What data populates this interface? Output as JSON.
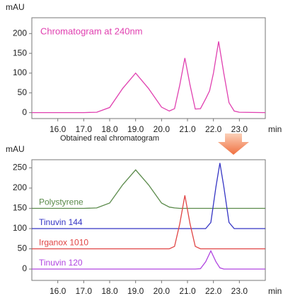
{
  "chart_data": [
    {
      "type": "line",
      "title": "Chromatogram at 240nm",
      "y_label": "mAU",
      "x_label": "min",
      "x": [
        15.0,
        16.0,
        17.0,
        17.5,
        18.0,
        18.5,
        19.0,
        19.5,
        20.0,
        20.3,
        20.5,
        20.7,
        20.9,
        21.1,
        21.3,
        21.5,
        21.7,
        21.85,
        22.0,
        22.2,
        22.4,
        22.6,
        22.8,
        23.0,
        24.0
      ],
      "series": [
        {
          "color": "#e040b0",
          "values": [
            0,
            0,
            0,
            1,
            13,
            61,
            100,
            61,
            14,
            4,
            10,
            69,
            138,
            69,
            9,
            10,
            35,
            55,
            100,
            180,
            100,
            25,
            4,
            1,
            0
          ]
        }
      ],
      "xlim": [
        15.0,
        24.0
      ],
      "xticks": [
        {
          "value": 16,
          "label": "16.0"
        },
        {
          "value": 17,
          "label": "17.0"
        },
        {
          "value": 18,
          "label": "18.0"
        },
        {
          "value": 19,
          "label": "19.0"
        },
        {
          "value": 20,
          "label": "20.0"
        },
        {
          "value": 21,
          "label": "21.0"
        },
        {
          "value": 22,
          "label": "22.0"
        },
        {
          "value": 23,
          "label": "23.0"
        }
      ],
      "ylim": [
        -15,
        240
      ],
      "yticks": [
        0,
        50,
        100,
        150,
        200
      ]
    },
    {
      "type": "line",
      "title": "Obtained real chromatogram",
      "y_label": "mAU",
      "x_label": "min",
      "x": [
        15.0,
        16.0,
        17.0,
        17.5,
        18.0,
        18.5,
        19.0,
        19.5,
        20.0,
        20.3,
        20.5,
        20.7,
        20.9,
        21.1,
        21.3,
        21.5,
        21.7,
        21.9,
        22.1,
        22.25,
        22.4,
        22.6,
        22.8,
        23.0,
        24.0
      ],
      "series": [
        {
          "name": "Polystyrene",
          "color": "#5a8a4a",
          "values": [
            150,
            150,
            150,
            151,
            163,
            208,
            245,
            208,
            163,
            153,
            151,
            150,
            150,
            150,
            150,
            150,
            150,
            150,
            150,
            150,
            150,
            150,
            150,
            150,
            150
          ]
        },
        {
          "name": "Tinuvin 144",
          "color": "#3434c4",
          "values": [
            100,
            100,
            100,
            100,
            100,
            100,
            100,
            100,
            100,
            100,
            100,
            100,
            100,
            100,
            100,
            100,
            100,
            115,
            204,
            262,
            204,
            115,
            100,
            100,
            100
          ]
        },
        {
          "name": "Irganox 1010",
          "color": "#e04444",
          "values": [
            50,
            50,
            50,
            50,
            50,
            50,
            50,
            50,
            50,
            50,
            56,
            111,
            182,
            111,
            56,
            50,
            50,
            50,
            50,
            50,
            50,
            50,
            50,
            50,
            50
          ]
        },
        {
          "name": "Tinuvin 120",
          "color": "#b044e0",
          "values": [
            0,
            0,
            0,
            0,
            0,
            0,
            0,
            0,
            0,
            0,
            0,
            0,
            0,
            0,
            0,
            1,
            18,
            45,
            18,
            3,
            0,
            0,
            0,
            0,
            0
          ]
        }
      ],
      "xlim": [
        15.0,
        24.0
      ],
      "xticks": [
        {
          "value": 16,
          "label": "16.0"
        },
        {
          "value": 17,
          "label": "17.0"
        },
        {
          "value": 18,
          "label": "18.0"
        },
        {
          "value": 19,
          "label": "19.0"
        },
        {
          "value": 20,
          "label": "20.0"
        },
        {
          "value": 21,
          "label": "21.0"
        },
        {
          "value": 22,
          "label": "22.0"
        },
        {
          "value": 23,
          "label": "23.0"
        }
      ],
      "ylim": [
        -28,
        270
      ],
      "yticks": [
        0,
        50,
        100,
        150,
        200,
        250
      ]
    }
  ]
}
